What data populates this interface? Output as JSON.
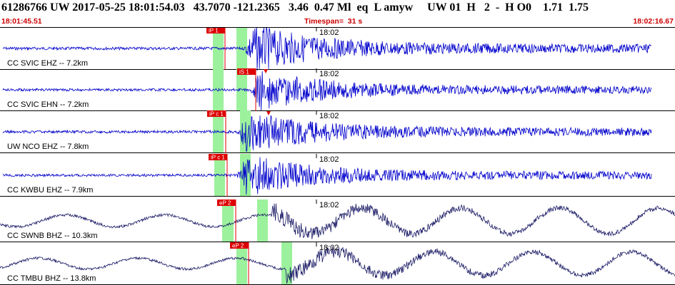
{
  "header": {
    "title": "61286766 UW 2017-05-25 18:01:54.03   43.7070 -121.2365   3.46  0.47 Ml  eq  L amyw     UW 01  H   2  -  H O0    1.71  1.75",
    "start_time": "18:01:45.51",
    "timespan": "Timespan=  31 s",
    "end_time": "18:02:16.67"
  },
  "colors": {
    "trace_blue": "#0000cc",
    "trace_navy": "#1a1a66",
    "pick_red": "#dd0000",
    "window_green": "#9cf19c",
    "text_red": "#cc0000"
  },
  "traces": [
    {
      "label": "CC SVIC EHZ -- 7.2km",
      "time_mark": "18:02",
      "pick": "iP 1",
      "style": "blue"
    },
    {
      "label": "CC SVIC EHN -- 7.2km",
      "time_mark": "18:02",
      "pick": "iS 1",
      "style": "blue"
    },
    {
      "label": "UW NCO EHZ -- 7.8km",
      "time_mark": "18:02",
      "pick": "iP c 1",
      "style": "blue"
    },
    {
      "label": "CC KWBU EHZ -- 7.9km",
      "time_mark": "18:02",
      "pick": "iP c 1",
      "style": "blue"
    },
    {
      "label": "CC SWNB BHZ -- 10.3km",
      "time_mark": "18:02",
      "pick": "eP 2",
      "style": "navy"
    },
    {
      "label": "CC TMBU BHZ -- 13.8km",
      "time_mark": "18:02",
      "pick": "eP 2",
      "style": "navy"
    }
  ]
}
